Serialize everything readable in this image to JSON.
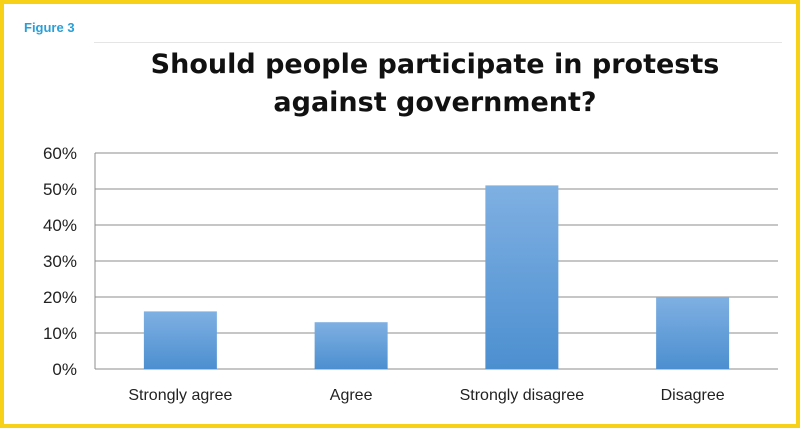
{
  "figure_label": "Figure 3",
  "colors": {
    "frame_border": "#f7d117",
    "figure_label": "#2a9fd6",
    "bar_top": "#7fb0e2",
    "bar_bottom": "#4c8fd0",
    "grid": "#8c8c8c"
  },
  "chart_data": {
    "type": "bar",
    "title": "Should people participate in protests against government?",
    "title_lines": [
      "Should people participate in protests",
      "against government?"
    ],
    "categories": [
      "Strongly agree",
      "Agree",
      "Strongly disagree",
      "Disagree"
    ],
    "values": [
      16,
      13,
      51,
      20
    ],
    "y_unit": "%",
    "ylim": [
      0,
      60
    ],
    "yticks": [
      0,
      10,
      20,
      30,
      40,
      50,
      60
    ],
    "ytick_labels": [
      "0%",
      "10%",
      "20%",
      "30%",
      "40%",
      "50%",
      "60%"
    ],
    "grid": true,
    "legend": "none",
    "xlabel": "",
    "ylabel": ""
  }
}
